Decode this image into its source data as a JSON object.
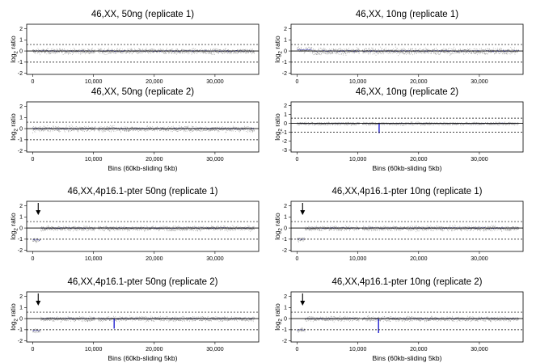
{
  "figure": {
    "x_axis_label": "Bins (60kb-sliding 5kb)",
    "y_axis_label_main": "log",
    "y_axis_label_sub": "2",
    "y_axis_label_tail": " ratio"
  },
  "chart_data": [
    {
      "type": "scatter",
      "title": "46,XX, 50ng (replicate 1)",
      "xlabel": "",
      "ylabel": "log2 ratio",
      "xticks": [
        "0",
        "10,000",
        "20,000",
        "30,000"
      ],
      "yticks": [
        "2",
        "1",
        "0",
        "-1",
        "-2"
      ],
      "xlim": [
        -1000,
        37200
      ],
      "ylim": [
        -2.1,
        2.4
      ],
      "reference_lines": [
        0.58,
        -1
      ],
      "segments": [
        {
          "x0": 0,
          "x1": 36500,
          "y": 0
        }
      ],
      "dips": [],
      "noise": 0.18,
      "arrow": null
    },
    {
      "type": "scatter",
      "title": "46,XX, 10ng (replicate 1)",
      "xlabel": "",
      "ylabel": "log2 ratio",
      "xticks": [
        "0",
        "10,000",
        "20,000",
        "30,000"
      ],
      "yticks": [
        "2",
        "1",
        "0",
        "-1",
        "-2"
      ],
      "xlim": [
        -1000,
        37200
      ],
      "ylim": [
        -2.1,
        2.4
      ],
      "reference_lines": [
        0.58,
        -1
      ],
      "segments": [
        {
          "x0": 0,
          "x1": 2500,
          "y": 0.12
        },
        {
          "x0": 2500,
          "x1": 36500,
          "y": 0
        }
      ],
      "dips": [],
      "noise": 0.22,
      "arrow": null
    },
    {
      "type": "scatter",
      "title": "46,XX, 50ng (replicate 2)",
      "xlabel": "Bins (60kb-sliding 5kb)",
      "ylabel": "log2 ratio",
      "xticks": [
        "0",
        "10,000",
        "20,000",
        "30,000"
      ],
      "yticks": [
        "2",
        "1",
        "0",
        "-1",
        "-2"
      ],
      "xlim": [
        -1000,
        37200
      ],
      "ylim": [
        -2.1,
        2.4
      ],
      "reference_lines": [
        0.58,
        -1
      ],
      "segments": [
        {
          "x0": 0,
          "x1": 36500,
          "y": 0
        }
      ],
      "dips": [],
      "noise": 0.18,
      "arrow": null
    },
    {
      "type": "scatter",
      "title": "46,XX, 10ng (replicate 2)",
      "xlabel": "Bins (60kb-sliding 5kb)",
      "ylabel": "log2 ratio",
      "xticks": [
        "0",
        "10,000",
        "20,000",
        "30,000"
      ],
      "yticks": [
        "2",
        "1",
        "0",
        "-1",
        "-2",
        "-3"
      ],
      "xlim": [
        -1000,
        37200
      ],
      "ylim": [
        -3.2,
        2.4
      ],
      "reference_lines": [
        0.58,
        -1
      ],
      "segments": [
        {
          "x0": 0,
          "x1": 36500,
          "y": 0
        }
      ],
      "dips": [
        {
          "x": 13500,
          "y": -1.1
        }
      ],
      "noise": 0.12,
      "arrow": null
    },
    {
      "type": "scatter",
      "title": "46,XX,4p16.1-pter 50ng (replicate 1)",
      "xlabel": "",
      "ylabel": "log2 ratio",
      "xticks": [
        "0",
        "10,000",
        "20,000",
        "30,000"
      ],
      "yticks": [
        "2",
        "1",
        "0",
        "-1",
        "-2"
      ],
      "xlim": [
        -1000,
        37200
      ],
      "ylim": [
        -2.1,
        2.4
      ],
      "reference_lines": [
        0.58,
        -1
      ],
      "segments": [
        {
          "x0": 0,
          "x1": 1300,
          "y": -1.05
        },
        {
          "x0": 1300,
          "x1": 36500,
          "y": 0
        }
      ],
      "dips": [],
      "noise": 0.16,
      "arrow": {
        "x": 900
      }
    },
    {
      "type": "scatter",
      "title": "46,XX,4p16.1-pter 10ng  (replicate 1)",
      "xlabel": "",
      "ylabel": "log2 ratio",
      "xticks": [
        "0",
        "10,000",
        "20,000",
        "30,000"
      ],
      "yticks": [
        "2",
        "1",
        "0",
        "-1",
        "-2"
      ],
      "xlim": [
        -1000,
        37200
      ],
      "ylim": [
        -2.1,
        2.4
      ],
      "reference_lines": [
        0.58,
        -1
      ],
      "segments": [
        {
          "x0": 0,
          "x1": 1300,
          "y": -1.0
        },
        {
          "x0": 1300,
          "x1": 36500,
          "y": 0
        }
      ],
      "dips": [],
      "noise": 0.16,
      "arrow": {
        "x": 900
      }
    },
    {
      "type": "scatter",
      "title": "46,XX,4p16.1-pter 50ng (replicate 2)",
      "xlabel": "Bins (60kb-sliding 5kb)",
      "ylabel": "log2 ratio",
      "xticks": [
        "0",
        "10,000",
        "20,000",
        "30,000"
      ],
      "yticks": [
        "2",
        "1",
        "0",
        "-1",
        "-2"
      ],
      "xlim": [
        -1000,
        37200
      ],
      "ylim": [
        -2.1,
        2.4
      ],
      "reference_lines": [
        0.58,
        -1
      ],
      "segments": [
        {
          "x0": 0,
          "x1": 1300,
          "y": -1.05
        },
        {
          "x0": 1300,
          "x1": 36500,
          "y": 0
        }
      ],
      "dips": [
        {
          "x": 13400,
          "y": -0.9
        }
      ],
      "noise": 0.16,
      "arrow": {
        "x": 900
      }
    },
    {
      "type": "scatter",
      "title": "46,XX,4p16.1-pter 10ng  (replicate 2)",
      "xlabel": "Bins (60kb-sliding 5kb)",
      "ylabel": "log2 ratio",
      "xticks": [
        "0",
        "10,000",
        "20,000",
        "30,000"
      ],
      "yticks": [
        "2",
        "1",
        "0",
        "-1",
        "-2"
      ],
      "xlim": [
        -1000,
        37200
      ],
      "ylim": [
        -2.1,
        2.4
      ],
      "reference_lines": [
        0.58,
        -1
      ],
      "segments": [
        {
          "x0": 0,
          "x1": 1300,
          "y": -1.0
        },
        {
          "x0": 1300,
          "x1": 36500,
          "y": 0
        }
      ],
      "dips": [
        {
          "x": 13400,
          "y": -1.3
        }
      ],
      "noise": 0.16,
      "arrow": {
        "x": 900
      }
    }
  ]
}
